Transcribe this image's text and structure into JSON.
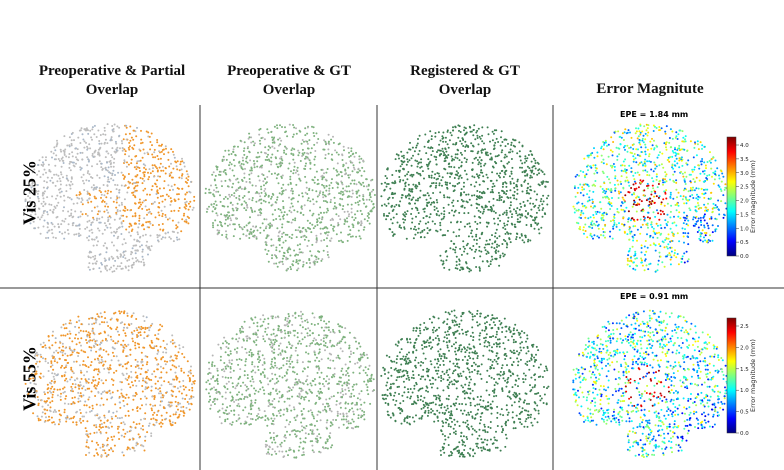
{
  "columns": [
    {
      "title": [
        "Preoperative & Partial",
        "Overlap"
      ]
    },
    {
      "title": [
        "Preoperative & GT",
        "Overlap"
      ]
    },
    {
      "title": [
        "Registered & GT",
        "Overlap"
      ]
    },
    {
      "title": [
        "Error Magnitute"
      ]
    }
  ],
  "rows": [
    {
      "label": "Vis  25%",
      "epe": "EPE = 1.84 mm",
      "colorbar": {
        "label": "Error magnitude (mm)",
        "ticks": [
          "0.0",
          "0.5",
          "1.0",
          "1.5",
          "2.0",
          "2.5",
          "3.0",
          "3.5",
          "4.0"
        ]
      }
    },
    {
      "label": "Vis  55%",
      "epe": "EPE = 0.91 mm",
      "colorbar": {
        "label": "Error magnitude (mm)",
        "ticks": [
          "0.0",
          "0.5",
          "1.0",
          "1.5",
          "2.0",
          "2.5"
        ]
      }
    }
  ]
}
